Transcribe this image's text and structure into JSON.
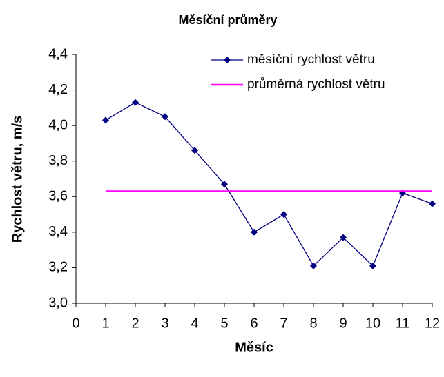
{
  "chart_data": {
    "type": "line",
    "title": "Měsíční průměry",
    "xlabel": "Měsíc",
    "ylabel": "Rychlost větru, m/s",
    "x": [
      1,
      2,
      3,
      4,
      5,
      6,
      7,
      8,
      9,
      10,
      11,
      12
    ],
    "series": [
      {
        "name": "měsíční rychlost větru",
        "color": "#000080",
        "marker": "diamond",
        "values": [
          4.03,
          4.13,
          4.05,
          3.86,
          3.67,
          3.4,
          3.5,
          3.21,
          3.37,
          3.21,
          3.62,
          3.56
        ]
      },
      {
        "name": "průměrná rychlost větru",
        "color": "#ff00ff",
        "x": [
          1,
          12
        ],
        "values": [
          3.63,
          3.63
        ]
      }
    ],
    "xlim": [
      0,
      12
    ],
    "xticks": [
      0,
      1,
      2,
      3,
      4,
      5,
      6,
      7,
      8,
      9,
      10,
      11,
      12
    ],
    "ylim": [
      3.0,
      4.4
    ],
    "yticks": [
      {
        "value": 3.0,
        "label": "3,0"
      },
      {
        "value": 3.2,
        "label": "3,2"
      },
      {
        "value": 3.4,
        "label": "3,4"
      },
      {
        "value": 3.6,
        "label": "3,6"
      },
      {
        "value": 3.8,
        "label": "3,8"
      },
      {
        "value": 4.0,
        "label": "4,0"
      },
      {
        "value": 4.2,
        "label": "4,2"
      },
      {
        "value": 4.4,
        "label": "4,4"
      }
    ],
    "grid": false,
    "legend": "upper right"
  }
}
